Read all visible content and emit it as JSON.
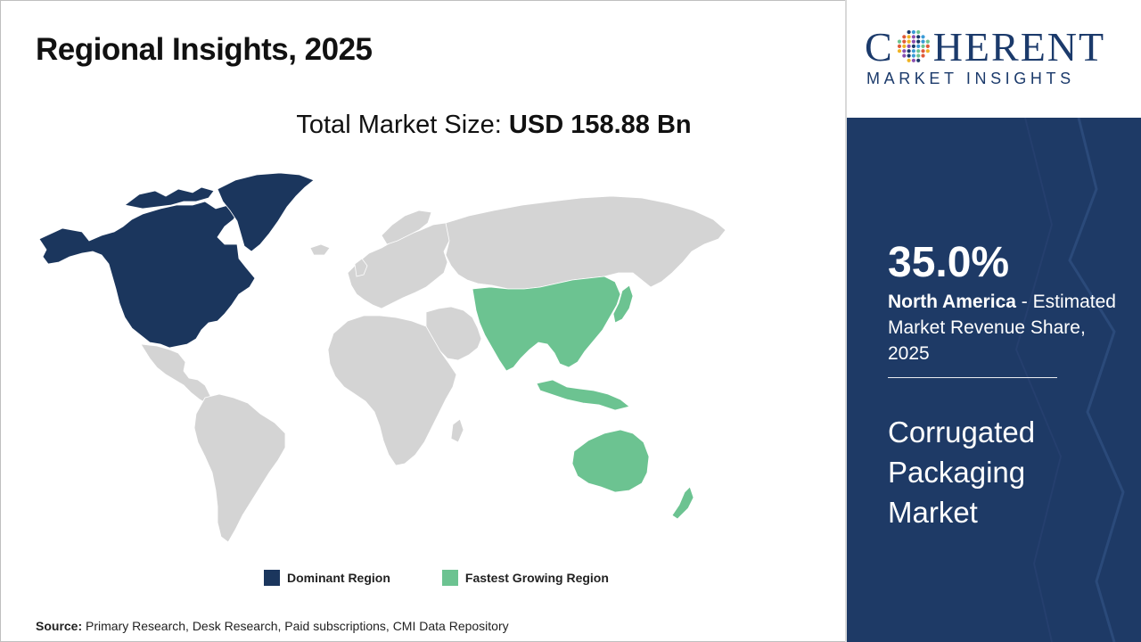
{
  "header": {
    "title": "Regional Insights, 2025"
  },
  "market_size": {
    "label": "Total Market Size: ",
    "value": "USD 158.88 Bn"
  },
  "map": {
    "regions": [
      {
        "name": "North America",
        "category": "dominant"
      },
      {
        "name": "Asia Pacific",
        "category": "fastest-growing"
      }
    ],
    "colors": {
      "dominant": "#1b365d",
      "fastest": "#6cc391",
      "other": "#d4d4d4"
    }
  },
  "legend": {
    "items": [
      {
        "label": "Dominant Region",
        "color": "#1b365d"
      },
      {
        "label": "Fastest Growing Region",
        "color": "#6cc391"
      }
    ]
  },
  "source": {
    "label": "Source:",
    "text": " Primary Research, Desk Research, Paid subscriptions, CMI Data Repository"
  },
  "logo": {
    "main_left": "C",
    "main_right": "HERENT",
    "sub": "MARKET INSIGHTS"
  },
  "panel": {
    "share_value": "35.0%",
    "region": "North America",
    "desc": " - Estimated Market Revenue Share, 2025",
    "market_name": "Corrugated Packaging Market"
  }
}
